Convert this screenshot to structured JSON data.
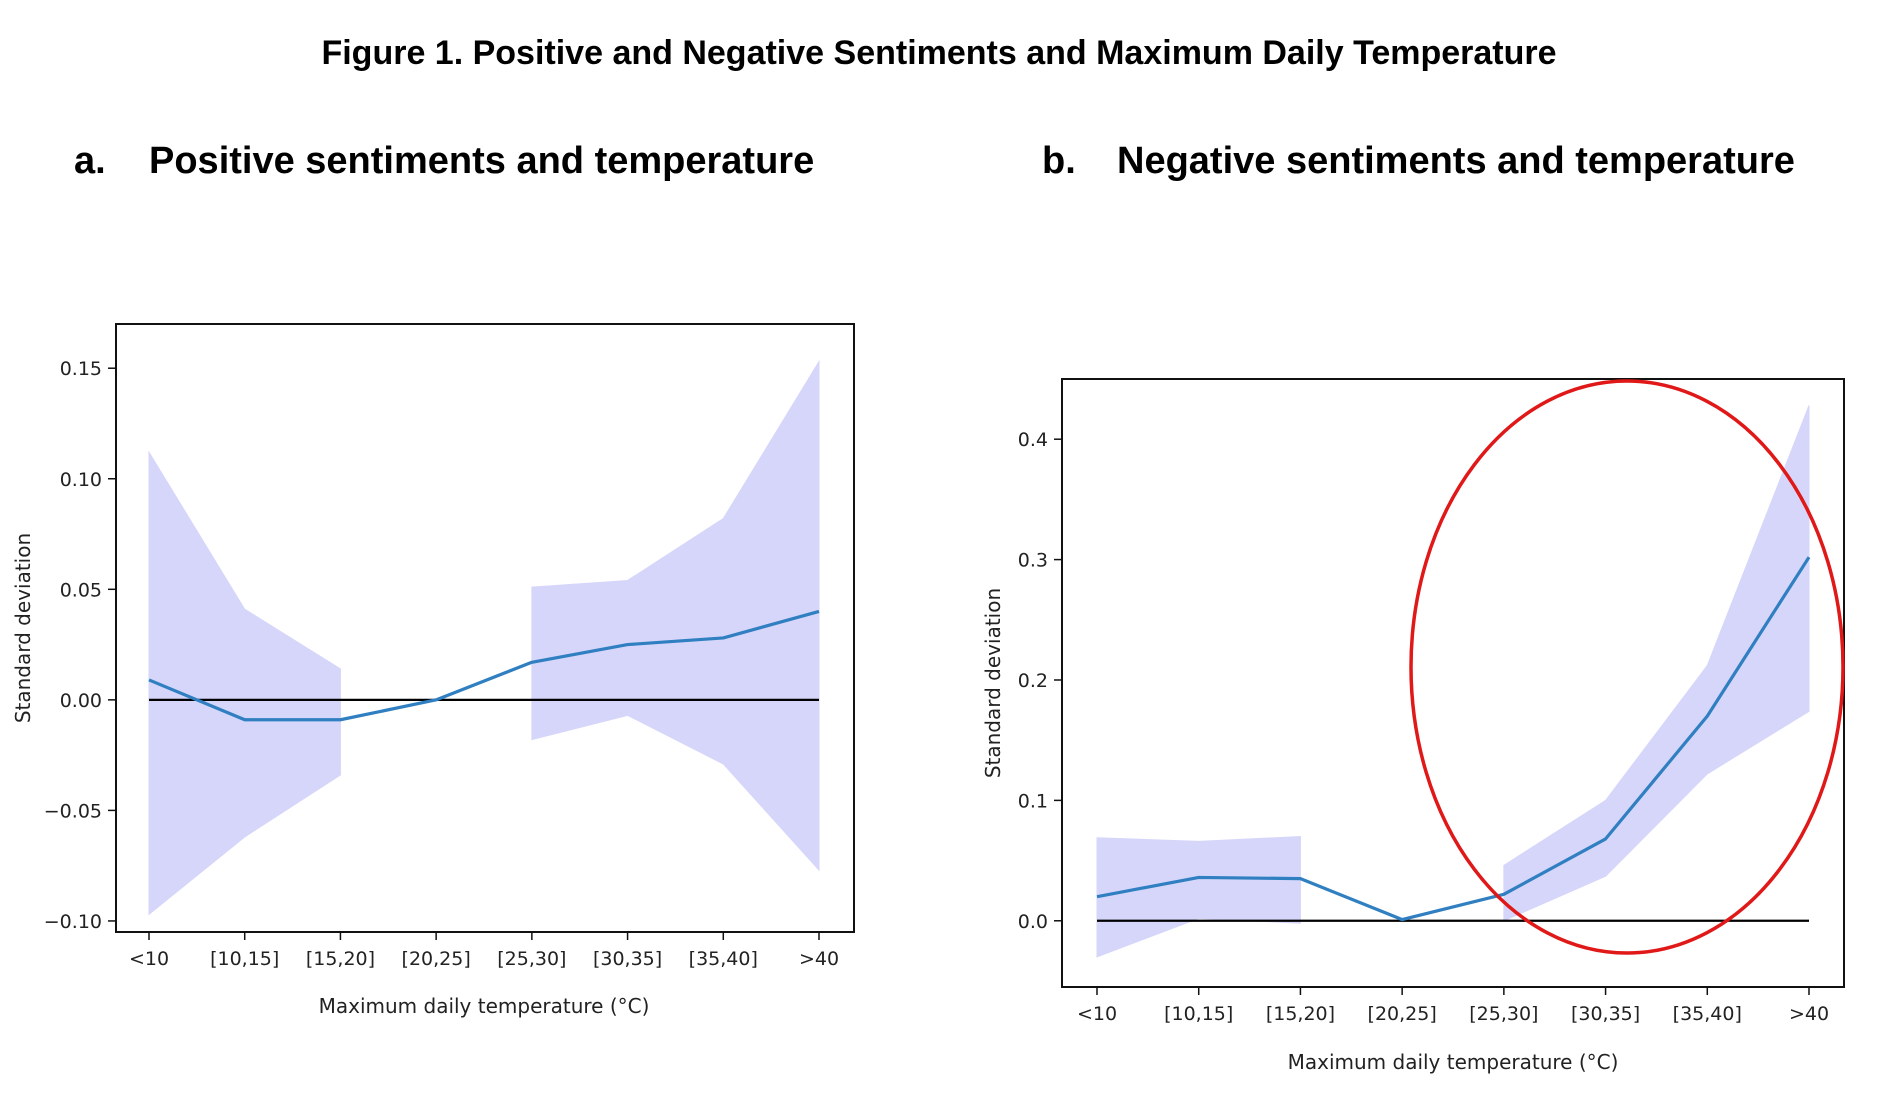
{
  "figure_title": "Figure 1. Positive and Negative Sentiments and Maximum Daily Temperature",
  "chart_data": [
    {
      "type": "line",
      "panel_letter": "a.",
      "title": "Positive sentiments and temperature",
      "xlabel": "Maximum daily temperature (°C)",
      "ylabel": "Standard deviation",
      "categories": [
        "<10",
        "[10,15]",
        "[15,20]",
        "[20,25]",
        "[25,30]",
        "[30,35]",
        "[35,40]",
        ">40"
      ],
      "ylim": [
        -0.105,
        0.17
      ],
      "yticks": [
        -0.1,
        -0.05,
        0.0,
        0.05,
        0.1,
        0.15
      ],
      "ytick_labels": [
        "−0.10",
        "−0.05",
        "0.00",
        "0.05",
        "0.10",
        "0.15"
      ],
      "reference_line": 0,
      "series": [
        {
          "values": [
            0.009,
            -0.009,
            -0.009,
            0.0,
            0.017,
            0.025,
            0.028,
            0.04
          ],
          "lower": [
            -0.097,
            -0.062,
            -0.034,
            null,
            -0.018,
            -0.007,
            -0.029,
            -0.077
          ],
          "upper": [
            0.112,
            0.041,
            0.014,
            null,
            0.051,
            0.054,
            0.082,
            0.153
          ]
        }
      ],
      "colors": {
        "line": "#2f7fc1",
        "band": "#d6d6fb",
        "reference": "#000000"
      },
      "grid": false
    },
    {
      "type": "line",
      "panel_letter": "b.",
      "title": "Negative sentiments and temperature",
      "xlabel": "Maximum daily temperature (°C)",
      "ylabel": "Standard deviation",
      "categories": [
        "<10",
        "[10,15]",
        "[15,20]",
        "[20,25]",
        "[25,30]",
        "[30,35]",
        "[35,40]",
        ">40"
      ],
      "ylim": [
        -0.055,
        0.45
      ],
      "yticks": [
        0.0,
        0.1,
        0.2,
        0.3,
        0.4
      ],
      "ytick_labels": [
        "0.0",
        "0.1",
        "0.2",
        "0.3",
        "0.4"
      ],
      "reference_line": 0,
      "series": [
        {
          "values": [
            0.02,
            0.036,
            0.035,
            0.001,
            0.022,
            0.068,
            0.17,
            0.302
          ],
          "lower": [
            -0.03,
            0.002,
            -0.002,
            null,
            0.0,
            0.037,
            0.122,
            0.174
          ],
          "upper": [
            0.069,
            0.066,
            0.07,
            null,
            0.046,
            0.1,
            0.212,
            0.428
          ]
        }
      ],
      "colors": {
        "line": "#2f7fc1",
        "band": "#d6d6fb",
        "reference": "#000000",
        "highlight": "#e01818"
      },
      "highlight_region": "ellipse around [25,30] to >40",
      "grid": false
    }
  ]
}
